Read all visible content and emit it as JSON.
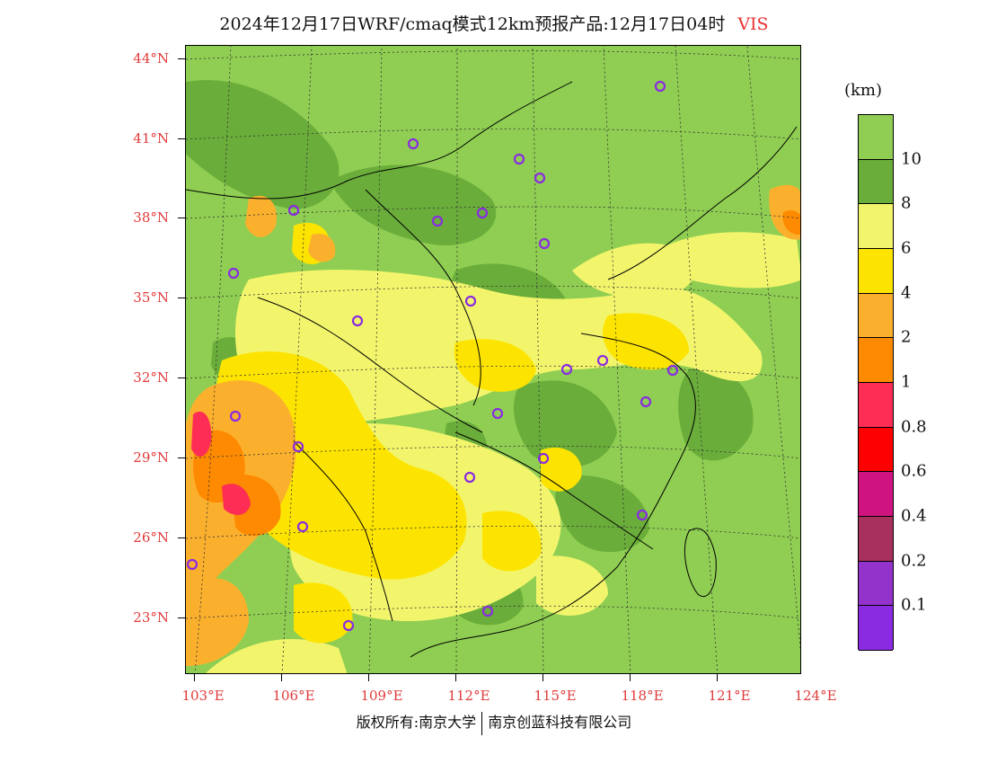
{
  "title": {
    "text": "2024年12月17日WRF/cmaq模式12km预报产品:12月17日04时",
    "variable": "VIS"
  },
  "axes": {
    "lat_labels": [
      "44°N",
      "41°N",
      "38°N",
      "35°N",
      "32°N",
      "29°N",
      "26°N",
      "23°N"
    ],
    "lon_labels": [
      "103°E",
      "106°E",
      "109°E",
      "112°E",
      "115°E",
      "118°E",
      "121°E",
      "124°E"
    ]
  },
  "legend": {
    "unit": "(km)",
    "labels": [
      "10",
      "8",
      "6",
      "4",
      "2",
      "1",
      "0.8",
      "0.6",
      "0.4",
      "0.2",
      "0.1"
    ],
    "colors": [
      "#8fce52",
      "#6aad3a",
      "#f2f56c",
      "#fde400",
      "#fbb02d",
      "#fd8a00",
      "#fd2d55",
      "#fd0000",
      "#d0147f",
      "#a8305c",
      "#9333cc",
      "#8a2be2"
    ]
  },
  "footer": {
    "left": "版权所有:南京大学",
    "right": "南京创蓝科技有限公司"
  },
  "stations_icon": "circle-marker-icon"
}
